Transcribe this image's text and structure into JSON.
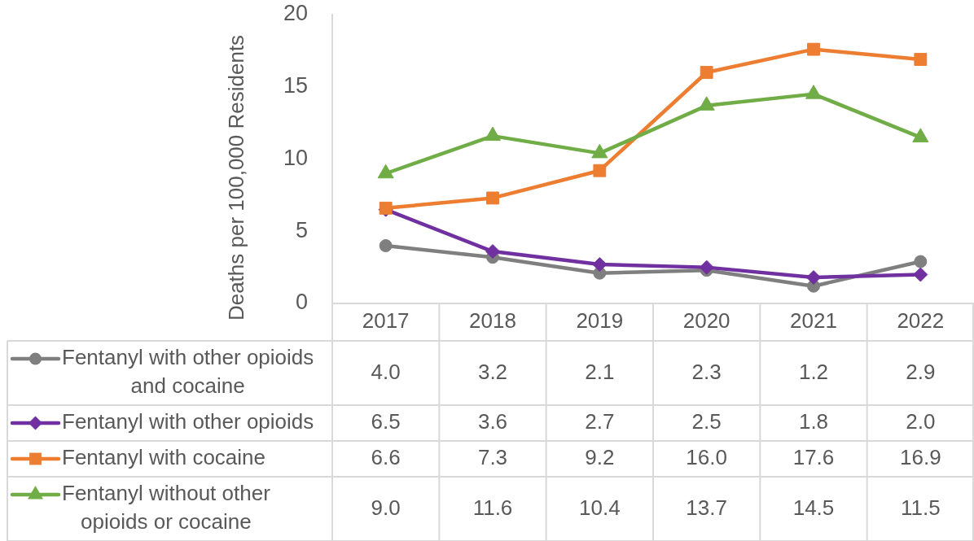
{
  "chart_data": {
    "type": "line",
    "ylabel": "Deaths per 100,000 Residents",
    "categories": [
      "2017",
      "2018",
      "2019",
      "2020",
      "2021",
      "2022"
    ],
    "series": [
      {
        "name": "Fentanyl with other opioids and cocaine",
        "color": "#7f7f7f",
        "marker": "circle",
        "values": [
          4.0,
          3.2,
          2.1,
          2.3,
          1.2,
          2.9
        ],
        "value_labels": [
          "4.0",
          "3.2",
          "2.1",
          "2.3",
          "1.2",
          "2.9"
        ]
      },
      {
        "name": "Fentanyl with other opioids",
        "color": "#7030a0",
        "marker": "diamond",
        "values": [
          6.5,
          3.6,
          2.7,
          2.5,
          1.8,
          2.0
        ],
        "value_labels": [
          "6.5",
          "3.6",
          "2.7",
          "2.5",
          "1.8",
          "2.0"
        ]
      },
      {
        "name": "Fentanyl with cocaine",
        "color": "#ed7d31",
        "marker": "square",
        "values": [
          6.6,
          7.3,
          9.2,
          16.0,
          17.6,
          16.9
        ],
        "value_labels": [
          "6.6",
          "7.3",
          "9.2",
          "16.0",
          "17.6",
          "16.9"
        ]
      },
      {
        "name": "Fentanyl without other opioids or cocaine",
        "color": "#70ad47",
        "marker": "triangle",
        "values": [
          9.0,
          11.6,
          10.4,
          13.7,
          14.5,
          11.5
        ],
        "value_labels": [
          "9.0",
          "11.6",
          "10.4",
          "13.7",
          "14.5",
          "11.5"
        ]
      }
    ],
    "ylim": [
      0,
      20
    ],
    "yticks": [
      0,
      5,
      10,
      15,
      20
    ],
    "legend": "bottom"
  }
}
